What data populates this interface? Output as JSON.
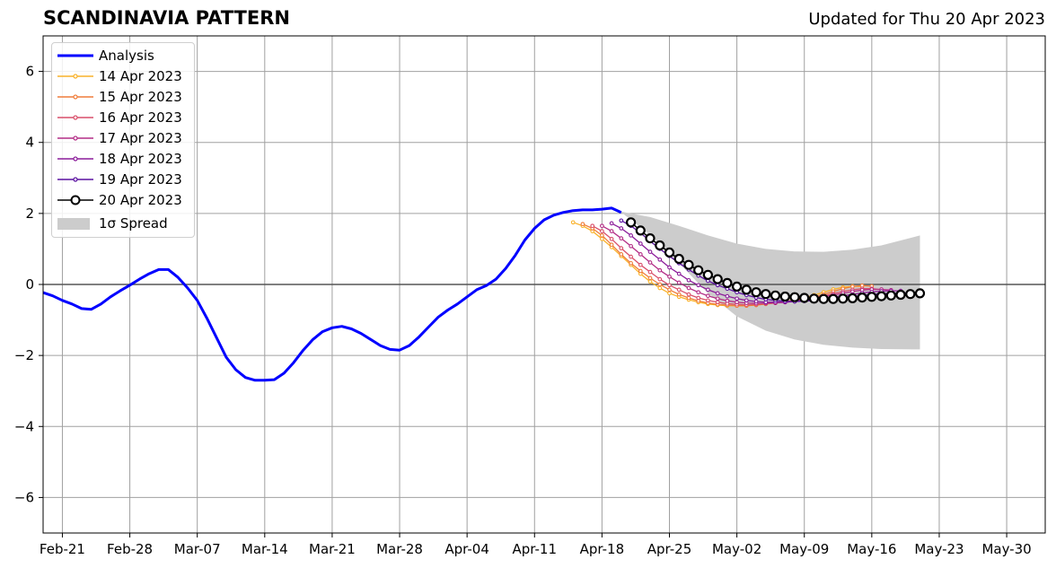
{
  "header": {
    "title": "SCANDINAVIA PATTERN",
    "updated": "Updated for Thu 20 Apr 2023"
  },
  "colors": {
    "analysis": "#0000ff",
    "spread": "#cccccc",
    "grid": "#a0a0a0",
    "forecasts": [
      "#f9b22a",
      "#ef7d3b",
      "#d94f6a",
      "#b32d86",
      "#8b1c9a",
      "#5a10a0",
      "#000000"
    ]
  },
  "chart_data": {
    "type": "line",
    "x_axis": {
      "ticks": [
        "Feb-21",
        "Feb-28",
        "Mar-07",
        "Mar-14",
        "Mar-21",
        "Mar-28",
        "Apr-04",
        "Apr-11",
        "Apr-18",
        "Apr-25",
        "May-02",
        "May-09",
        "May-16",
        "May-23",
        "May-30"
      ],
      "range": [
        "2023-02-19",
        "2023-06-03"
      ]
    },
    "y_axis": {
      "ticks": [
        "6",
        "4",
        "2",
        "0",
        "−2",
        "−4",
        "−6"
      ],
      "tick_values": [
        6,
        4,
        2,
        0,
        -2,
        -4,
        -6
      ],
      "range": [
        -7,
        7
      ]
    },
    "grid": true,
    "zero_line": true,
    "legend_position": "top-left",
    "series": [
      {
        "name": "Analysis",
        "kind": "analysis",
        "x": [
          "2023-02-19",
          "2023-02-20",
          "2023-02-21",
          "2023-02-22",
          "2023-02-23",
          "2023-02-24",
          "2023-02-25",
          "2023-02-26",
          "2023-02-27",
          "2023-02-28",
          "2023-03-01",
          "2023-03-02",
          "2023-03-03",
          "2023-03-04",
          "2023-03-05",
          "2023-03-06",
          "2023-03-07",
          "2023-03-08",
          "2023-03-09",
          "2023-03-10",
          "2023-03-11",
          "2023-03-12",
          "2023-03-13",
          "2023-03-14",
          "2023-03-15",
          "2023-03-16",
          "2023-03-17",
          "2023-03-18",
          "2023-03-19",
          "2023-03-20",
          "2023-03-21",
          "2023-03-22",
          "2023-03-23",
          "2023-03-24",
          "2023-03-25",
          "2023-03-26",
          "2023-03-27",
          "2023-03-28",
          "2023-03-29",
          "2023-03-30",
          "2023-03-31",
          "2023-04-01",
          "2023-04-02",
          "2023-04-03",
          "2023-04-04",
          "2023-04-05",
          "2023-04-06",
          "2023-04-07",
          "2023-04-08",
          "2023-04-09",
          "2023-04-10",
          "2023-04-11",
          "2023-04-12",
          "2023-04-13",
          "2023-04-14",
          "2023-04-15",
          "2023-04-16",
          "2023-04-17",
          "2023-04-18",
          "2023-04-19",
          "2023-04-20"
        ],
        "y": [
          -0.23,
          -0.32,
          -0.45,
          -0.55,
          -0.68,
          -0.7,
          -0.55,
          -0.35,
          -0.18,
          -0.02,
          0.15,
          0.3,
          0.42,
          0.42,
          0.2,
          -0.1,
          -0.45,
          -0.95,
          -1.5,
          -2.05,
          -2.4,
          -2.62,
          -2.7,
          -2.7,
          -2.68,
          -2.5,
          -2.2,
          -1.85,
          -1.55,
          -1.33,
          -1.22,
          -1.18,
          -1.25,
          -1.38,
          -1.55,
          -1.72,
          -1.83,
          -1.85,
          -1.72,
          -1.48,
          -1.2,
          -0.92,
          -0.72,
          -0.55,
          -0.35,
          -0.15,
          -0.03,
          0.15,
          0.45,
          0.82,
          1.25,
          1.58,
          1.82,
          1.95,
          2.03,
          2.08,
          2.1,
          2.1,
          2.12,
          2.15,
          2.03
        ]
      },
      {
        "name": "14 Apr 2023",
        "kind": "forecast",
        "x": [
          "2023-04-15",
          "2023-04-16",
          "2023-04-17",
          "2023-04-18",
          "2023-04-19",
          "2023-04-20",
          "2023-04-21",
          "2023-04-22",
          "2023-04-23",
          "2023-04-24",
          "2023-04-25",
          "2023-04-26",
          "2023-04-27",
          "2023-04-28",
          "2023-04-29",
          "2023-04-30",
          "2023-05-01",
          "2023-05-02",
          "2023-05-03",
          "2023-05-04",
          "2023-05-05",
          "2023-05-06",
          "2023-05-07",
          "2023-05-08",
          "2023-05-09",
          "2023-05-10",
          "2023-05-11",
          "2023-05-12",
          "2023-05-13",
          "2023-05-14",
          "2023-05-15"
        ],
        "y": [
          1.75,
          1.65,
          1.5,
          1.28,
          1.05,
          0.8,
          0.55,
          0.3,
          0.08,
          -0.1,
          -0.25,
          -0.35,
          -0.43,
          -0.5,
          -0.55,
          -0.58,
          -0.6,
          -0.6,
          -0.6,
          -0.58,
          -0.55,
          -0.52,
          -0.48,
          -0.44,
          -0.38,
          -0.3,
          -0.22,
          -0.14,
          -0.08,
          -0.05,
          -0.06
        ]
      },
      {
        "name": "15 Apr 2023",
        "kind": "forecast",
        "x": [
          "2023-04-16",
          "2023-04-17",
          "2023-04-18",
          "2023-04-19",
          "2023-04-20",
          "2023-04-21",
          "2023-04-22",
          "2023-04-23",
          "2023-04-24",
          "2023-04-25",
          "2023-04-26",
          "2023-04-27",
          "2023-04-28",
          "2023-04-29",
          "2023-04-30",
          "2023-05-01",
          "2023-05-02",
          "2023-05-03",
          "2023-05-04",
          "2023-05-05",
          "2023-05-06",
          "2023-05-07",
          "2023-05-08",
          "2023-05-09",
          "2023-05-10",
          "2023-05-11",
          "2023-05-12",
          "2023-05-13",
          "2023-05-14",
          "2023-05-15",
          "2023-05-16"
        ],
        "y": [
          1.7,
          1.58,
          1.38,
          1.12,
          0.85,
          0.6,
          0.38,
          0.18,
          0.0,
          -0.15,
          -0.28,
          -0.38,
          -0.46,
          -0.52,
          -0.56,
          -0.58,
          -0.6,
          -0.6,
          -0.58,
          -0.55,
          -0.52,
          -0.48,
          -0.44,
          -0.4,
          -0.35,
          -0.28,
          -0.2,
          -0.12,
          -0.06,
          -0.03,
          -0.05
        ]
      },
      {
        "name": "16 Apr 2023",
        "kind": "forecast",
        "x": [
          "2023-04-17",
          "2023-04-18",
          "2023-04-19",
          "2023-04-20",
          "2023-04-21",
          "2023-04-22",
          "2023-04-23",
          "2023-04-24",
          "2023-04-25",
          "2023-04-26",
          "2023-04-27",
          "2023-04-28",
          "2023-04-29",
          "2023-04-30",
          "2023-05-01",
          "2023-05-02",
          "2023-05-03",
          "2023-05-04",
          "2023-05-05",
          "2023-05-06",
          "2023-05-07",
          "2023-05-08",
          "2023-05-09",
          "2023-05-10",
          "2023-05-11",
          "2023-05-12",
          "2023-05-13",
          "2023-05-14",
          "2023-05-15",
          "2023-05-16",
          "2023-05-17"
        ],
        "y": [
          1.65,
          1.5,
          1.28,
          1.02,
          0.78,
          0.55,
          0.35,
          0.15,
          -0.02,
          -0.15,
          -0.28,
          -0.38,
          -0.45,
          -0.5,
          -0.54,
          -0.56,
          -0.57,
          -0.56,
          -0.54,
          -0.52,
          -0.5,
          -0.47,
          -0.43,
          -0.38,
          -0.32,
          -0.26,
          -0.2,
          -0.15,
          -0.12,
          -0.12,
          -0.15
        ]
      },
      {
        "name": "17 Apr 2023",
        "kind": "forecast",
        "x": [
          "2023-04-18",
          "2023-04-19",
          "2023-04-20",
          "2023-04-21",
          "2023-04-22",
          "2023-04-23",
          "2023-04-24",
          "2023-04-25",
          "2023-04-26",
          "2023-04-27",
          "2023-04-28",
          "2023-04-29",
          "2023-04-30",
          "2023-05-01",
          "2023-05-02",
          "2023-05-03",
          "2023-05-04",
          "2023-05-05",
          "2023-05-06",
          "2023-05-07",
          "2023-05-08",
          "2023-05-09",
          "2023-05-10",
          "2023-05-11",
          "2023-05-12",
          "2023-05-13",
          "2023-05-14",
          "2023-05-15",
          "2023-05-16",
          "2023-05-17",
          "2023-05-18"
        ],
        "y": [
          1.65,
          1.5,
          1.3,
          1.08,
          0.85,
          0.62,
          0.4,
          0.22,
          0.05,
          -0.1,
          -0.22,
          -0.32,
          -0.4,
          -0.46,
          -0.5,
          -0.52,
          -0.53,
          -0.53,
          -0.52,
          -0.5,
          -0.47,
          -0.44,
          -0.4,
          -0.35,
          -0.3,
          -0.25,
          -0.2,
          -0.16,
          -0.14,
          -0.14,
          -0.16
        ]
      },
      {
        "name": "18 Apr 2023",
        "kind": "forecast",
        "x": [
          "2023-04-19",
          "2023-04-20",
          "2023-04-21",
          "2023-04-22",
          "2023-04-23",
          "2023-04-24",
          "2023-04-25",
          "2023-04-26",
          "2023-04-27",
          "2023-04-28",
          "2023-04-29",
          "2023-04-30",
          "2023-05-01",
          "2023-05-02",
          "2023-05-03",
          "2023-05-04",
          "2023-05-05",
          "2023-05-06",
          "2023-05-07",
          "2023-05-08",
          "2023-05-09",
          "2023-05-10",
          "2023-05-11",
          "2023-05-12",
          "2023-05-13",
          "2023-05-14",
          "2023-05-15",
          "2023-05-16",
          "2023-05-17",
          "2023-05-18",
          "2023-05-19"
        ],
        "y": [
          1.72,
          1.58,
          1.38,
          1.15,
          0.92,
          0.7,
          0.48,
          0.3,
          0.12,
          -0.02,
          -0.15,
          -0.25,
          -0.33,
          -0.4,
          -0.45,
          -0.48,
          -0.5,
          -0.5,
          -0.5,
          -0.48,
          -0.46,
          -0.43,
          -0.4,
          -0.36,
          -0.32,
          -0.28,
          -0.24,
          -0.21,
          -0.19,
          -0.18,
          -0.18
        ]
      },
      {
        "name": "19 Apr 2023",
        "kind": "forecast",
        "x": [
          "2023-04-20",
          "2023-04-21",
          "2023-04-22",
          "2023-04-23",
          "2023-04-24",
          "2023-04-25",
          "2023-04-26",
          "2023-04-27",
          "2023-04-28",
          "2023-04-29",
          "2023-04-30",
          "2023-05-01",
          "2023-05-02",
          "2023-05-03",
          "2023-05-04",
          "2023-05-05",
          "2023-05-06",
          "2023-05-07",
          "2023-05-08",
          "2023-05-09",
          "2023-05-10",
          "2023-05-11",
          "2023-05-12",
          "2023-05-13",
          "2023-05-14",
          "2023-05-15",
          "2023-05-16",
          "2023-05-17",
          "2023-05-18",
          "2023-05-19",
          "2023-05-20"
        ],
        "y": [
          1.8,
          1.65,
          1.45,
          1.22,
          1.0,
          0.8,
          0.6,
          0.42,
          0.25,
          0.1,
          -0.02,
          -0.12,
          -0.22,
          -0.3,
          -0.37,
          -0.42,
          -0.45,
          -0.47,
          -0.48,
          -0.47,
          -0.45,
          -0.42,
          -0.4,
          -0.37,
          -0.34,
          -0.31,
          -0.28,
          -0.26,
          -0.25,
          -0.24,
          -0.24
        ]
      },
      {
        "name": "20 Apr 2023",
        "kind": "latest",
        "x": [
          "2023-04-21",
          "2023-04-22",
          "2023-04-23",
          "2023-04-24",
          "2023-04-25",
          "2023-04-26",
          "2023-04-27",
          "2023-04-28",
          "2023-04-29",
          "2023-04-30",
          "2023-05-01",
          "2023-05-02",
          "2023-05-03",
          "2023-05-04",
          "2023-05-05",
          "2023-05-06",
          "2023-05-07",
          "2023-05-08",
          "2023-05-09",
          "2023-05-10",
          "2023-05-11",
          "2023-05-12",
          "2023-05-13",
          "2023-05-14",
          "2023-05-15",
          "2023-05-16",
          "2023-05-17",
          "2023-05-18",
          "2023-05-19",
          "2023-05-20",
          "2023-05-21"
        ],
        "y": [
          1.75,
          1.52,
          1.3,
          1.1,
          0.9,
          0.72,
          0.55,
          0.4,
          0.27,
          0.15,
          0.04,
          -0.06,
          -0.15,
          -0.22,
          -0.27,
          -0.31,
          -0.34,
          -0.36,
          -0.38,
          -0.4,
          -0.41,
          -0.41,
          -0.4,
          -0.39,
          -0.37,
          -0.35,
          -0.33,
          -0.31,
          -0.29,
          -0.27,
          -0.25
        ]
      }
    ],
    "spread": {
      "name": "1σ Spread",
      "x": [
        "2023-04-20",
        "2023-04-23",
        "2023-04-26",
        "2023-04-29",
        "2023-05-02",
        "2023-05-05",
        "2023-05-08",
        "2023-05-11",
        "2023-05-14",
        "2023-05-17",
        "2023-05-21"
      ],
      "upper": [
        2.05,
        1.9,
        1.65,
        1.38,
        1.15,
        1.0,
        0.93,
        0.92,
        0.98,
        1.1,
        1.38
      ],
      "lower": [
        2.03,
        1.4,
        0.6,
        -0.25,
        -0.9,
        -1.3,
        -1.55,
        -1.7,
        -1.78,
        -1.82,
        -1.83
      ]
    }
  }
}
